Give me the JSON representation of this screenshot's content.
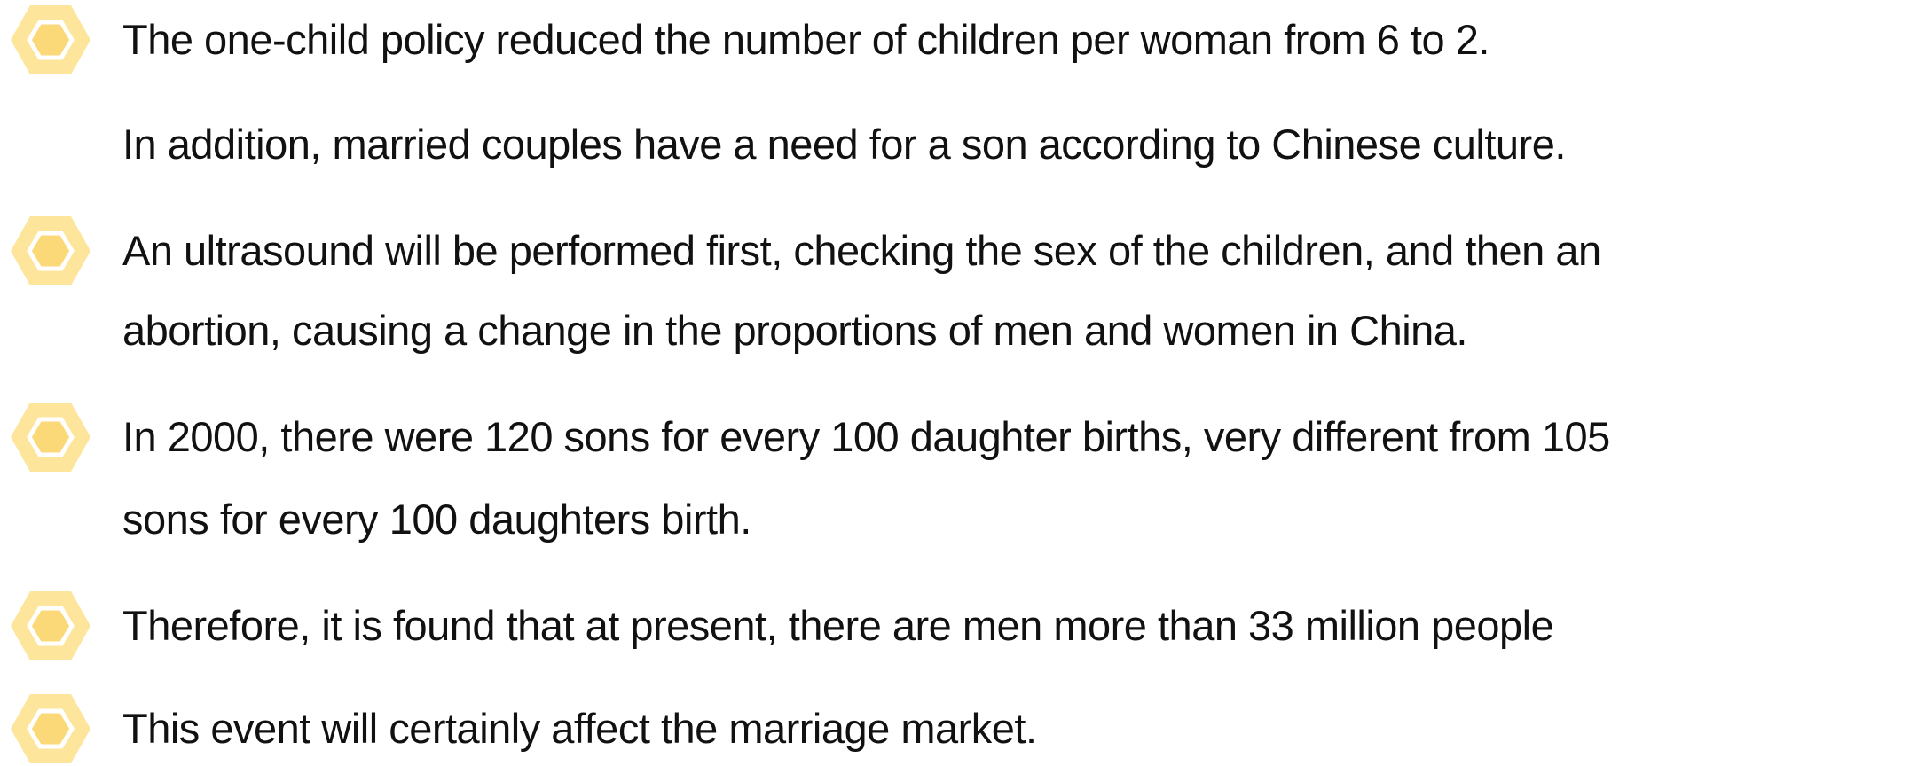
{
  "paragraphs": [
    {
      "lines": [
        "The one-child policy reduced the number of children per woman from 6 to 2."
      ]
    },
    {
      "lines": [
        "In addition, married couples have a need for a son according to Chinese culture."
      ]
    },
    {
      "lines": [
        "An ultrasound will be performed first, checking the sex of the children, and then an",
        "abortion, causing a change in the proportions of men and women in China."
      ]
    },
    {
      "lines": [
        "In 2000, there were 120 sons for every 100 daughter births, very different from 105",
        "sons for every 100 daughters birth."
      ]
    },
    {
      "lines": [
        "Therefore, it is found that at present, there are men more than 33 million people"
      ]
    },
    {
      "lines": [
        "This event will certainly affect the marriage market."
      ]
    }
  ]
}
